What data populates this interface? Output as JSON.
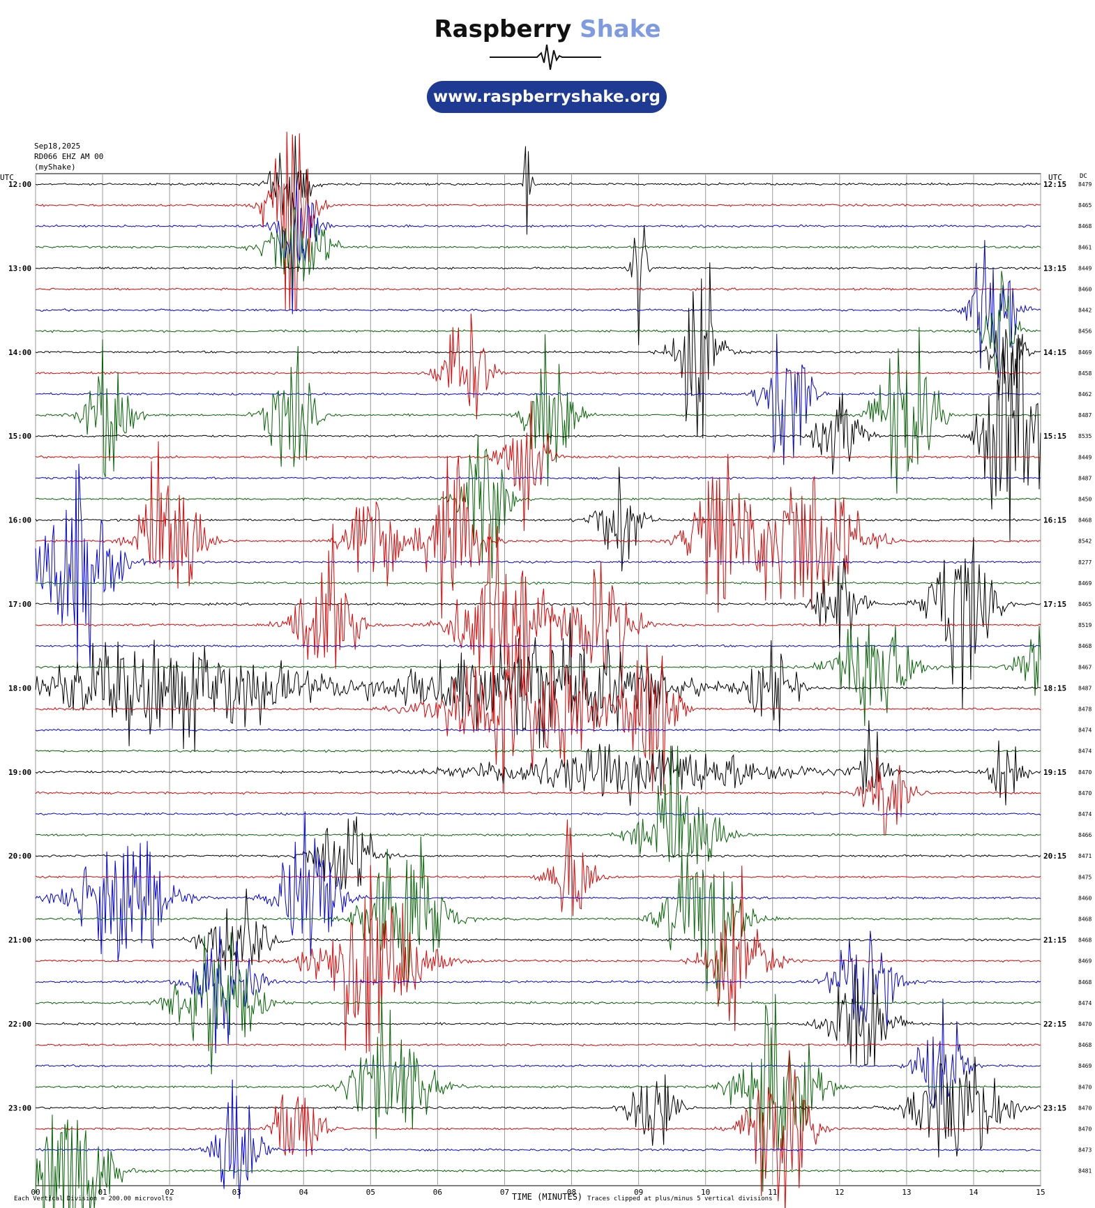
{
  "brand": {
    "name_part1": "Raspberry",
    "name_part2": "Shake",
    "url": "www.raspberryshake.org",
    "accent_color": "#7e9ae0",
    "pill_color": "#1f3a93"
  },
  "meta": {
    "date": "Sep18,2025",
    "station": "RD066 EHZ AM 00",
    "source": "(myShake)"
  },
  "chart_data": {
    "type": "line",
    "kind": "helicorder",
    "left_axis_title": "UTC",
    "right_axis_title": "UTC",
    "dc_header": "DC",
    "xlabel": "TIME (MINUTES)",
    "x_ticks": [
      "00",
      "01",
      "02",
      "03",
      "04",
      "05",
      "06",
      "07",
      "08",
      "09",
      "10",
      "11",
      "12",
      "13",
      "14",
      "15"
    ],
    "xlim": [
      0,
      15
    ],
    "footer_left": "Each Vertical Division =  200.00 microvolts",
    "footer_right": "Traces clipped at plus/minus 5 vertical divisions",
    "trace_colors": [
      "#000000",
      "#e00000",
      "#0000e0",
      "#006400"
    ],
    "grid": true,
    "rows": [
      {
        "left": "12:00",
        "right": "12:15",
        "dc": "8479"
      },
      {
        "left": "",
        "right": "",
        "dc": "8465"
      },
      {
        "left": "",
        "right": "",
        "dc": "8468"
      },
      {
        "left": "",
        "right": "",
        "dc": "8461"
      },
      {
        "left": "13:00",
        "right": "13:15",
        "dc": "8449"
      },
      {
        "left": "",
        "right": "",
        "dc": "8460"
      },
      {
        "left": "",
        "right": "",
        "dc": "8442"
      },
      {
        "left": "",
        "right": "",
        "dc": "8456"
      },
      {
        "left": "14:00",
        "right": "14:15",
        "dc": "8469"
      },
      {
        "left": "",
        "right": "",
        "dc": "8458"
      },
      {
        "left": "",
        "right": "",
        "dc": "8462"
      },
      {
        "left": "",
        "right": "",
        "dc": "8487"
      },
      {
        "left": "15:00",
        "right": "15:15",
        "dc": "8535"
      },
      {
        "left": "",
        "right": "",
        "dc": "8449"
      },
      {
        "left": "",
        "right": "",
        "dc": "8487"
      },
      {
        "left": "",
        "right": "",
        "dc": "8450"
      },
      {
        "left": "16:00",
        "right": "16:15",
        "dc": "8468"
      },
      {
        "left": "",
        "right": "",
        "dc": "8542"
      },
      {
        "left": "",
        "right": "",
        "dc": "8277"
      },
      {
        "left": "",
        "right": "",
        "dc": "8469"
      },
      {
        "left": "17:00",
        "right": "17:15",
        "dc": "8465"
      },
      {
        "left": "",
        "right": "",
        "dc": "8519"
      },
      {
        "left": "",
        "right": "",
        "dc": "8468"
      },
      {
        "left": "",
        "right": "",
        "dc": "8467"
      },
      {
        "left": "18:00",
        "right": "18:15",
        "dc": "8487"
      },
      {
        "left": "",
        "right": "",
        "dc": "8478"
      },
      {
        "left": "",
        "right": "",
        "dc": "8474"
      },
      {
        "left": "",
        "right": "",
        "dc": "8474"
      },
      {
        "left": "19:00",
        "right": "19:15",
        "dc": "8470"
      },
      {
        "left": "",
        "right": "",
        "dc": "8470"
      },
      {
        "left": "",
        "right": "",
        "dc": "8474"
      },
      {
        "left": "",
        "right": "",
        "dc": "8466"
      },
      {
        "left": "20:00",
        "right": "20:15",
        "dc": "8471"
      },
      {
        "left": "",
        "right": "",
        "dc": "8475"
      },
      {
        "left": "",
        "right": "",
        "dc": "8460"
      },
      {
        "left": "",
        "right": "",
        "dc": "8468"
      },
      {
        "left": "21:00",
        "right": "21:15",
        "dc": "8468"
      },
      {
        "left": "",
        "right": "",
        "dc": "8469"
      },
      {
        "left": "",
        "right": "",
        "dc": "8468"
      },
      {
        "left": "",
        "right": "",
        "dc": "8474"
      },
      {
        "left": "22:00",
        "right": "22:15",
        "dc": "8470"
      },
      {
        "left": "",
        "right": "",
        "dc": "8468"
      },
      {
        "left": "",
        "right": "",
        "dc": "8469"
      },
      {
        "left": "",
        "right": "",
        "dc": "8470"
      },
      {
        "left": "23:00",
        "right": "23:15",
        "dc": "8470"
      },
      {
        "left": "",
        "right": "",
        "dc": "8470"
      },
      {
        "left": "",
        "right": "",
        "dc": "8473"
      },
      {
        "left": "",
        "right": "",
        "dc": "8481"
      }
    ],
    "events": [
      [
        0,
        3.8,
        0.25,
        6
      ],
      [
        1,
        3.8,
        0.3,
        14
      ],
      [
        2,
        3.9,
        0.25,
        10
      ],
      [
        3,
        3.9,
        0.4,
        6
      ],
      [
        0,
        7.35,
        0.05,
        8
      ],
      [
        4,
        9.0,
        0.1,
        6
      ],
      [
        4,
        9.0,
        0.1,
        5
      ],
      [
        6,
        14.3,
        0.3,
        10
      ],
      [
        7,
        14.4,
        0.2,
        8
      ],
      [
        8,
        9.9,
        0.3,
        10
      ],
      [
        9,
        6.4,
        0.3,
        8
      ],
      [
        8,
        14.5,
        0.2,
        10
      ],
      [
        10,
        11.2,
        0.3,
        10
      ],
      [
        11,
        13.0,
        0.4,
        10
      ],
      [
        11,
        1.1,
        0.3,
        8
      ],
      [
        11,
        3.8,
        0.3,
        8
      ],
      [
        11,
        7.7,
        0.3,
        10
      ],
      [
        12,
        14.6,
        0.4,
        14
      ],
      [
        12,
        12.0,
        0.3,
        5
      ],
      [
        13,
        7.3,
        0.3,
        7
      ],
      [
        15,
        6.7,
        0.3,
        9
      ],
      [
        16,
        8.7,
        0.3,
        6
      ],
      [
        17,
        2.0,
        0.4,
        12
      ],
      [
        17,
        5.0,
        0.3,
        10
      ],
      [
        17,
        6.2,
        0.4,
        9
      ],
      [
        17,
        10.2,
        0.4,
        10
      ],
      [
        17,
        11.5,
        0.7,
        10
      ],
      [
        18,
        0.6,
        0.5,
        12
      ],
      [
        20,
        12.0,
        0.3,
        6
      ],
      [
        20,
        13.8,
        0.4,
        10
      ],
      [
        21,
        4.3,
        0.4,
        10
      ],
      [
        21,
        7.0,
        0.6,
        12
      ],
      [
        21,
        8.5,
        0.4,
        8
      ],
      [
        23,
        12.5,
        0.5,
        8
      ],
      [
        23,
        15.0,
        0.3,
        5
      ],
      [
        24,
        2.0,
        1.8,
        6
      ],
      [
        24,
        7.5,
        1.7,
        7
      ],
      [
        24,
        11.0,
        0.3,
        6
      ],
      [
        25,
        7.3,
        1.0,
        9
      ],
      [
        25,
        9.2,
        0.3,
        12
      ],
      [
        28,
        9.0,
        2.0,
        3
      ],
      [
        28,
        14.5,
        0.2,
        6
      ],
      [
        28,
        12.5,
        0.2,
        5
      ],
      [
        29,
        12.7,
        0.3,
        5
      ],
      [
        31,
        9.6,
        0.5,
        9
      ],
      [
        32,
        4.6,
        0.4,
        6
      ],
      [
        33,
        8.0,
        0.3,
        6
      ],
      [
        34,
        1.3,
        0.6,
        10
      ],
      [
        34,
        4.1,
        0.4,
        10
      ],
      [
        35,
        5.5,
        0.5,
        12
      ],
      [
        35,
        10.0,
        0.5,
        10
      ],
      [
        36,
        3.0,
        0.4,
        6
      ],
      [
        37,
        5.0,
        0.7,
        10
      ],
      [
        37,
        10.5,
        0.4,
        8
      ],
      [
        38,
        2.8,
        0.4,
        8
      ],
      [
        38,
        12.4,
        0.4,
        8
      ],
      [
        39,
        2.7,
        0.5,
        9
      ],
      [
        40,
        12.3,
        0.4,
        8
      ],
      [
        42,
        13.5,
        0.3,
        8
      ],
      [
        43,
        11.1,
        0.5,
        12
      ],
      [
        43,
        5.3,
        0.5,
        9
      ],
      [
        44,
        9.2,
        0.3,
        6
      ],
      [
        44,
        13.8,
        0.6,
        7
      ],
      [
        45,
        3.9,
        0.3,
        7
      ],
      [
        45,
        11.1,
        0.4,
        12
      ],
      [
        46,
        3.0,
        0.3,
        9
      ],
      [
        47,
        0.5,
        0.5,
        11
      ]
    ]
  }
}
